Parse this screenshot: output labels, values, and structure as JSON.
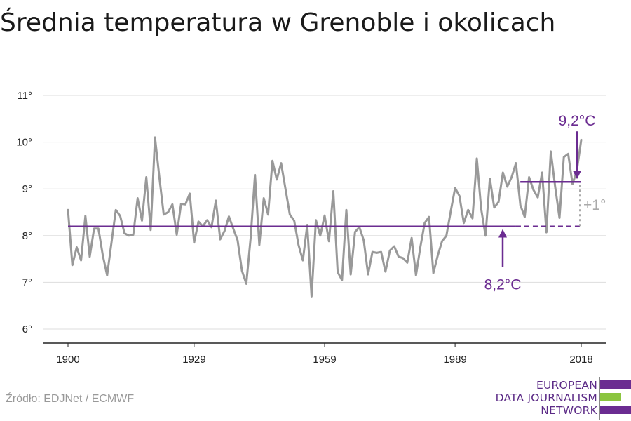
{
  "title": "Średnia temperatura w Grenoble i okolicach",
  "source": "Źródło: EDJNet / ECMWF",
  "logo": {
    "lines": [
      "EUROPEAN",
      "DATA JOURNALISM",
      "NETWORK"
    ],
    "text_color": "#5b2a86",
    "bar_colors": [
      "#6b2c91",
      "#8bc53f",
      "#6b2c91"
    ]
  },
  "colors": {
    "series": "#999999",
    "accent": "#6b2c91",
    "grid": "#dddddd",
    "axis": "#222222",
    "delta": "#aaaaaa"
  },
  "chart_data": {
    "type": "line",
    "title": "Średnia temperatura w Grenoble i okolicach",
    "xlabel": "",
    "ylabel": "",
    "xlim": [
      1900,
      2018
    ],
    "ylim": [
      6,
      11
    ],
    "x_ticks": [
      1900,
      1929,
      1959,
      1989,
      2018
    ],
    "y_ticks": [
      6,
      7,
      8,
      9,
      10,
      11
    ],
    "y_tick_labels": [
      "6°",
      "7°",
      "8°",
      "9°",
      "10°",
      "11°"
    ],
    "grid": true,
    "series": [
      {
        "x": [
          1900,
          1901,
          1902,
          1903,
          1904,
          1905,
          1906,
          1907,
          1908,
          1909,
          1910,
          1911,
          1912,
          1913,
          1914,
          1915,
          1916,
          1917,
          1918,
          1919,
          1920,
          1921,
          1922,
          1923,
          1924,
          1925,
          1926,
          1927,
          1928,
          1929,
          1930,
          1931,
          1932,
          1933,
          1934,
          1935,
          1936,
          1937,
          1938,
          1939,
          1940,
          1941,
          1942,
          1943,
          1944,
          1945,
          1946,
          1947,
          1948,
          1949,
          1950,
          1951,
          1952,
          1953,
          1954,
          1955,
          1956,
          1957,
          1958,
          1959,
          1960,
          1961,
          1962,
          1963,
          1964,
          1965,
          1966,
          1967,
          1968,
          1969,
          1970,
          1971,
          1972,
          1973,
          1974,
          1975,
          1976,
          1977,
          1978,
          1979,
          1980,
          1981,
          1982,
          1983,
          1984,
          1985,
          1986,
          1987,
          1988,
          1989,
          1990,
          1991,
          1992,
          1993,
          1994,
          1995,
          1996,
          1997,
          1998,
          1999,
          2000,
          2001,
          2002,
          2003,
          2004,
          2005,
          2006,
          2007,
          2008,
          2009,
          2010,
          2011,
          2012,
          2013,
          2014,
          2015,
          2016,
          2017,
          2018
        ],
        "values": [
          8.55,
          7.37,
          7.75,
          7.47,
          8.42,
          7.55,
          8.15,
          8.15,
          7.58,
          7.15,
          7.85,
          8.55,
          8.42,
          8.05,
          8.0,
          8.02,
          8.8,
          8.32,
          9.25,
          8.12,
          10.1,
          9.25,
          8.45,
          8.5,
          8.67,
          8.02,
          8.68,
          8.67,
          8.9,
          7.85,
          8.3,
          8.2,
          8.33,
          8.18,
          8.75,
          7.92,
          8.1,
          8.41,
          8.15,
          7.9,
          7.25,
          6.97,
          7.95,
          9.3,
          7.8,
          8.8,
          8.45,
          9.6,
          9.2,
          9.55,
          9.0,
          8.45,
          8.32,
          7.8,
          7.47,
          8.23,
          6.7,
          8.33,
          8.0,
          8.43,
          7.88,
          8.95,
          7.22,
          7.05,
          8.55,
          7.17,
          8.08,
          8.18,
          7.9,
          7.17,
          7.65,
          7.63,
          7.65,
          7.23,
          7.68,
          7.77,
          7.55,
          7.52,
          7.42,
          7.95,
          7.15,
          7.75,
          8.27,
          8.4,
          7.2,
          7.57,
          7.88,
          8.0,
          8.52,
          9.02,
          8.85,
          8.27,
          8.55,
          8.37,
          9.65,
          8.57,
          8.0,
          9.22,
          8.6,
          8.72,
          9.35,
          9.05,
          9.25,
          9.55,
          8.65,
          8.4,
          9.25,
          8.98,
          8.82,
          9.35,
          8.07,
          9.8,
          9.05,
          8.38,
          9.68,
          9.75,
          9.1,
          9.4,
          10.05
        ]
      }
    ],
    "annotations": {
      "baseline": {
        "value": 8.2,
        "label": "8,2°C",
        "x_start": 1900,
        "x_end": 2003,
        "dashed_to": 2018
      },
      "recent": {
        "value": 9.15,
        "label": "9,2°C",
        "x_start": 2004,
        "x_end": 2018
      },
      "delta": {
        "label": "+1°"
      }
    }
  }
}
